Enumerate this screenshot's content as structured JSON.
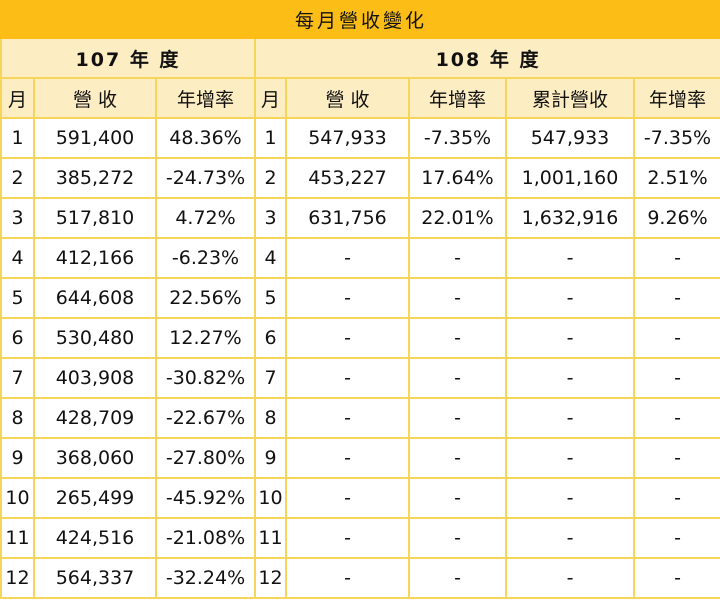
{
  "title": "每月營收變化",
  "years": {
    "y107": "107 年 度",
    "y108": "108 年 度"
  },
  "headers": {
    "month": "月",
    "revenue": "營 收",
    "yoy": "年增率",
    "cumulative": "累計營收"
  },
  "rows": [
    {
      "m107": "1",
      "rev107": "591,400",
      "yoy107": "48.36%",
      "m108": "1",
      "rev108": "547,933",
      "yoy108": "-7.35%",
      "cum108": "547,933",
      "cumyoy108": "-7.35%"
    },
    {
      "m107": "2",
      "rev107": "385,272",
      "yoy107": "-24.73%",
      "m108": "2",
      "rev108": "453,227",
      "yoy108": "17.64%",
      "cum108": "1,001,160",
      "cumyoy108": "2.51%"
    },
    {
      "m107": "3",
      "rev107": "517,810",
      "yoy107": "4.72%",
      "m108": "3",
      "rev108": "631,756",
      "yoy108": "22.01%",
      "cum108": "1,632,916",
      "cumyoy108": "9.26%"
    },
    {
      "m107": "4",
      "rev107": "412,166",
      "yoy107": "-6.23%",
      "m108": "4",
      "rev108": "-",
      "yoy108": "-",
      "cum108": "-",
      "cumyoy108": "-"
    },
    {
      "m107": "5",
      "rev107": "644,608",
      "yoy107": "22.56%",
      "m108": "5",
      "rev108": "-",
      "yoy108": "-",
      "cum108": "-",
      "cumyoy108": "-"
    },
    {
      "m107": "6",
      "rev107": "530,480",
      "yoy107": "12.27%",
      "m108": "6",
      "rev108": "-",
      "yoy108": "-",
      "cum108": "-",
      "cumyoy108": "-"
    },
    {
      "m107": "7",
      "rev107": "403,908",
      "yoy107": "-30.82%",
      "m108": "7",
      "rev108": "-",
      "yoy108": "-",
      "cum108": "-",
      "cumyoy108": "-"
    },
    {
      "m107": "8",
      "rev107": "428,709",
      "yoy107": "-22.67%",
      "m108": "8",
      "rev108": "-",
      "yoy108": "-",
      "cum108": "-",
      "cumyoy108": "-"
    },
    {
      "m107": "9",
      "rev107": "368,060",
      "yoy107": "-27.80%",
      "m108": "9",
      "rev108": "-",
      "yoy108": "-",
      "cum108": "-",
      "cumyoy108": "-"
    },
    {
      "m107": "10",
      "rev107": "265,499",
      "yoy107": "-45.92%",
      "m108": "10",
      "rev108": "-",
      "yoy108": "-",
      "cum108": "-",
      "cumyoy108": "-"
    },
    {
      "m107": "11",
      "rev107": "424,516",
      "yoy107": "-21.08%",
      "m108": "11",
      "rev108": "-",
      "yoy108": "-",
      "cum108": "-",
      "cumyoy108": "-"
    },
    {
      "m107": "12",
      "rev107": "564,337",
      "yoy107": "-32.24%",
      "m108": "12",
      "rev108": "-",
      "yoy108": "-",
      "cum108": "-",
      "cumyoy108": "-"
    }
  ]
}
